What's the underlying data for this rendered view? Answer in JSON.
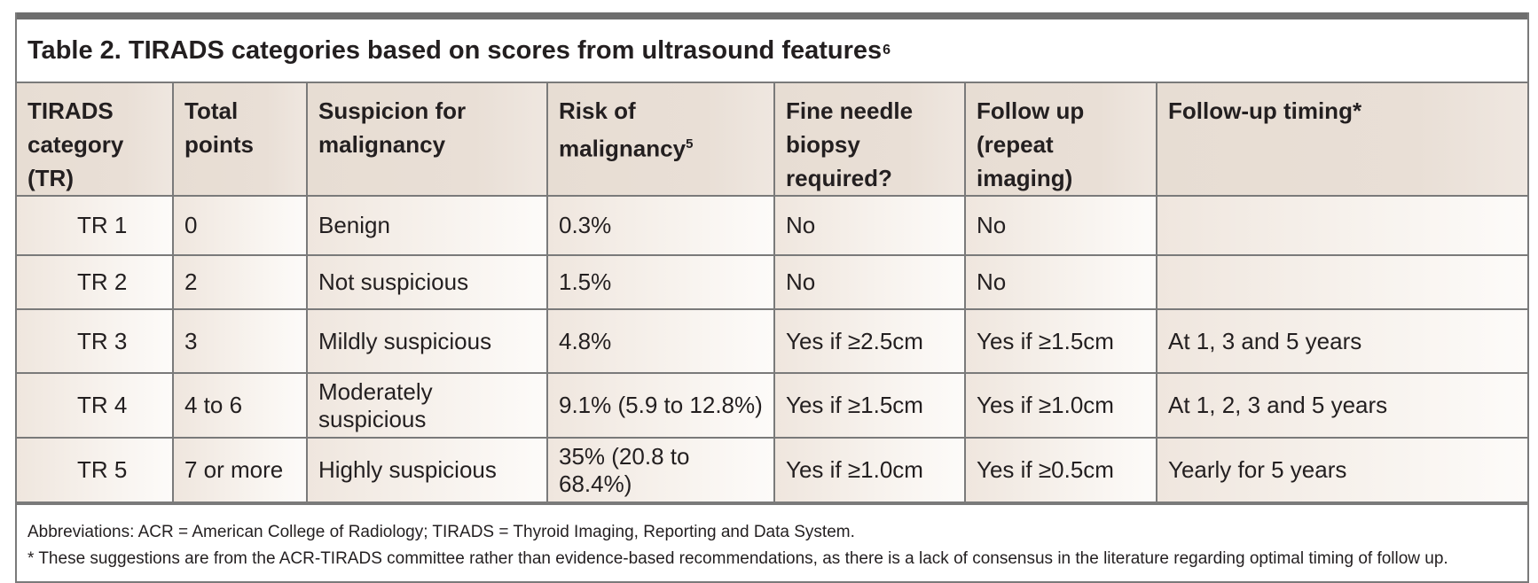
{
  "table": {
    "title": "Table 2. TIRADS categories based on scores from ultrasound features",
    "title_ref": "6",
    "headers": [
      {
        "label": "TIRADS category (TR)",
        "ref": ""
      },
      {
        "label": "Total points",
        "ref": ""
      },
      {
        "label": "Suspicion for malignancy",
        "ref": ""
      },
      {
        "label": "Risk of malignancy",
        "ref": "5"
      },
      {
        "label": "Fine needle biopsy required?",
        "ref": ""
      },
      {
        "label": "Follow up (repeat imaging)",
        "ref": ""
      },
      {
        "label": "Follow-up timing*",
        "ref": ""
      }
    ],
    "rows": [
      [
        "TR 1",
        "0",
        "Benign",
        "0.3%",
        "No",
        "No",
        ""
      ],
      [
        "TR 2",
        "2",
        "Not suspicious",
        "1.5%",
        "No",
        "No",
        ""
      ],
      [
        "TR 3",
        "3",
        "Mildly suspicious",
        "4.8%",
        "Yes if ≥2.5cm",
        "Yes if ≥1.5cm",
        "At 1, 3 and 5 years"
      ],
      [
        "TR 4",
        "4 to 6",
        "Moderately suspicious",
        "9.1% (5.9 to 12.8%)",
        "Yes if ≥1.5cm",
        "Yes if ≥1.0cm",
        "At 1, 2, 3 and 5 years"
      ],
      [
        "TR 5",
        "7 or more",
        "Highly suspicious",
        "35% (20.8 to 68.4%)",
        "Yes if ≥1.0cm",
        "Yes if ≥0.5cm",
        "Yearly for 5 years"
      ]
    ],
    "footnotes": [
      "Abbreviations: ACR = American College of Radiology; TIRADS = Thyroid Imaging, Reporting and Data System.",
      "* These suggestions are from the ACR-TIRADS committee rather than evidence-based recommendations, as there is a lack of consensus in the literature regarding optimal timing of follow up."
    ],
    "colors": {
      "header_bg": "#e7ddd3",
      "cell_bg": "#f7f2ed",
      "border": "#7a7a7a",
      "top_bar": "#6e6e6e"
    }
  }
}
